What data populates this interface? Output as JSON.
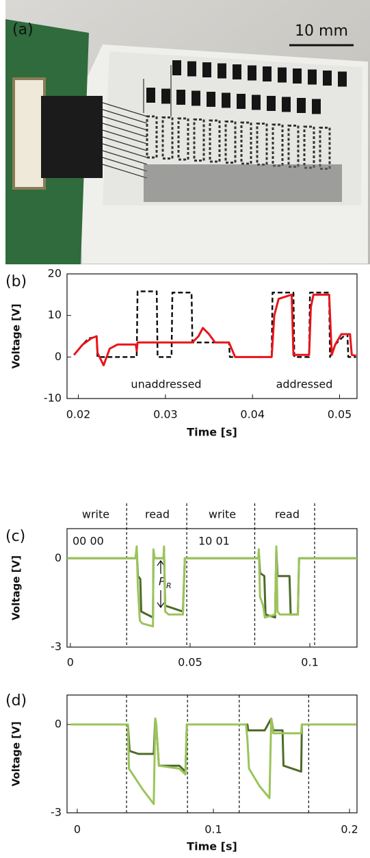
{
  "photo": {
    "label": "(a)",
    "scale_bar": "10 mm"
  },
  "chart_data": [
    {
      "type": "line",
      "label": "(b)",
      "y_label": "Voltage [V]",
      "x_label": "Time [s]",
      "xlim": [
        0.0187,
        0.052
      ],
      "ylim": [
        -10,
        20
      ],
      "xticks": [
        0.02,
        0.03,
        0.04,
        0.05
      ],
      "yticks": [
        -10,
        0,
        10,
        20
      ],
      "annotations": [
        "unaddressed",
        "addressed"
      ],
      "series": [
        {
          "color": "#111111",
          "style": "dashed",
          "x": [
            0.0195,
            0.0205,
            0.0212,
            0.0221,
            0.0222,
            0.0267,
            0.0268,
            0.029,
            0.0291,
            0.0307,
            0.0308,
            0.033,
            0.0331,
            0.0373,
            0.0374,
            0.0422,
            0.0423,
            0.0447,
            0.0448,
            0.0465,
            0.0466,
            0.0488,
            0.0489,
            0.0495,
            0.0507,
            0.0509,
            0.051,
            0.0519
          ],
          "values": [
            0.5,
            3,
            4.5,
            4.8,
            0,
            0,
            15.8,
            15.8,
            0,
            0,
            15.5,
            15.5,
            3.5,
            3.5,
            0,
            0,
            15.5,
            15.5,
            0,
            0,
            15.5,
            15.5,
            0,
            3,
            5.5,
            5.5,
            0,
            0
          ]
        },
        {
          "color": "#e8141a",
          "style": "solid",
          "x": [
            0.0195,
            0.0205,
            0.0215,
            0.0221,
            0.0222,
            0.0229,
            0.0236,
            0.0245,
            0.0266,
            0.0267,
            0.0268,
            0.0331,
            0.0338,
            0.0343,
            0.035,
            0.0357,
            0.0373,
            0.038,
            0.0422,
            0.0425,
            0.043,
            0.0445,
            0.0447,
            0.0465,
            0.0467,
            0.047,
            0.0488,
            0.0491,
            0.0495,
            0.0502,
            0.0512,
            0.0514,
            0.0519
          ],
          "values": [
            0.5,
            3,
            4.5,
            5,
            1,
            -2,
            2,
            3,
            3,
            1.5,
            3.5,
            3.5,
            5,
            7,
            5.5,
            3.5,
            3.5,
            0,
            0,
            10,
            14,
            15,
            0.5,
            0.5,
            12,
            15,
            15,
            0.5,
            3,
            5.5,
            5.5,
            0.5,
            0.3
          ]
        }
      ]
    },
    {
      "type": "line",
      "label": "(c)",
      "y_label": "Voltage [V]",
      "xlim": [
        -0.0014,
        0.1197
      ],
      "ylim": [
        -3,
        1
      ],
      "xticks": [
        0,
        0.05,
        0.1
      ],
      "yticks": [
        -3,
        0
      ],
      "markers": [
        0.0235,
        0.0486,
        0.077,
        0.102
      ],
      "phase_labels": [
        "write",
        "read",
        "write",
        "read"
      ],
      "state_labels": [
        "00 00",
        "10 01"
      ],
      "annotation": "P",
      "annotation_sub": "R",
      "series": [
        {
          "color": "#4d6b2a",
          "style": "solid",
          "x": [
            -0.0014,
            0.0272,
            0.0277,
            0.0282,
            0.0292,
            0.0296,
            0.0345,
            0.0347,
            0.0352,
            0.0389,
            0.0391,
            0.0396,
            0.047,
            0.0478,
            0.0785,
            0.0787,
            0.0792,
            0.081,
            0.0815,
            0.0855,
            0.086,
            0.0865,
            0.0915,
            0.092,
            0.095,
            0.0955,
            0.1197
          ],
          "values": [
            0,
            0,
            0.3,
            -0.6,
            -0.7,
            -1.8,
            -2,
            0.2,
            0,
            0,
            0.3,
            -1.6,
            -1.8,
            0,
            0,
            0.2,
            -0.5,
            -0.6,
            -1.9,
            -2,
            0.3,
            -0.6,
            -0.6,
            -1.9,
            -1.9,
            0,
            0
          ]
        },
        {
          "color": "#9bc45a",
          "style": "solid",
          "x": [
            -0.0014,
            0.0272,
            0.0277,
            0.0282,
            0.029,
            0.03,
            0.0345,
            0.0347,
            0.0352,
            0.0389,
            0.0391,
            0.0396,
            0.041,
            0.047,
            0.0478,
            0.0785,
            0.0787,
            0.0792,
            0.0805,
            0.0812,
            0.0855,
            0.086,
            0.0865,
            0.0875,
            0.095,
            0.0955,
            0.1197
          ],
          "values": [
            0,
            0,
            0.4,
            -1,
            -2.1,
            -2.2,
            -2.3,
            0.3,
            0,
            0,
            0.4,
            -1.8,
            -1.9,
            -1.9,
            0,
            0,
            0.3,
            -1.3,
            -1.6,
            -2,
            -1.9,
            0.4,
            -1.8,
            -1.9,
            -1.9,
            0,
            0
          ]
        }
      ]
    },
    {
      "type": "line",
      "label": "(d)",
      "y_label": "Voltage [V]",
      "x_label": "Time [s]",
      "xlim": [
        -0.0075,
        0.2055
      ],
      "ylim": [
        -3,
        1
      ],
      "xticks": [
        0,
        0.1,
        0.2
      ],
      "yticks": [
        -3,
        0
      ],
      "markers": [
        0.0362,
        0.081,
        0.119,
        0.17
      ],
      "series": [
        {
          "color": "#4d6b2a",
          "style": "solid",
          "x": [
            -0.005,
            0.0372,
            0.0385,
            0.045,
            0.0562,
            0.0573,
            0.058,
            0.06,
            0.075,
            0.0795,
            0.0805,
            0.125,
            0.1256,
            0.1377,
            0.1425,
            0.144,
            0.1508,
            0.1515,
            0.1645,
            0.165,
            0.205
          ],
          "values": [
            0,
            0,
            -0.9,
            -1,
            -1,
            0.2,
            0,
            -1.4,
            -1.4,
            -1.6,
            0,
            0,
            -0.2,
            -0.2,
            0.2,
            -0.2,
            -0.2,
            -1.4,
            -1.6,
            0,
            0
          ]
        },
        {
          "color": "#9bc45a",
          "style": "solid",
          "x": [
            -0.005,
            0.0372,
            0.038,
            0.048,
            0.0562,
            0.0573,
            0.058,
            0.06,
            0.075,
            0.0795,
            0.0805,
            0.124,
            0.125,
            0.1262,
            0.134,
            0.1412,
            0.1425,
            0.144,
            0.1645,
            0.165,
            0.205
          ],
          "values": [
            0,
            0,
            -1.5,
            -2.2,
            -2.7,
            0.2,
            0,
            -1.4,
            -1.5,
            -1.7,
            0,
            0,
            -0.5,
            -1.5,
            -2.1,
            -2.5,
            0.2,
            -0.3,
            -0.3,
            0,
            0
          ]
        }
      ]
    }
  ]
}
